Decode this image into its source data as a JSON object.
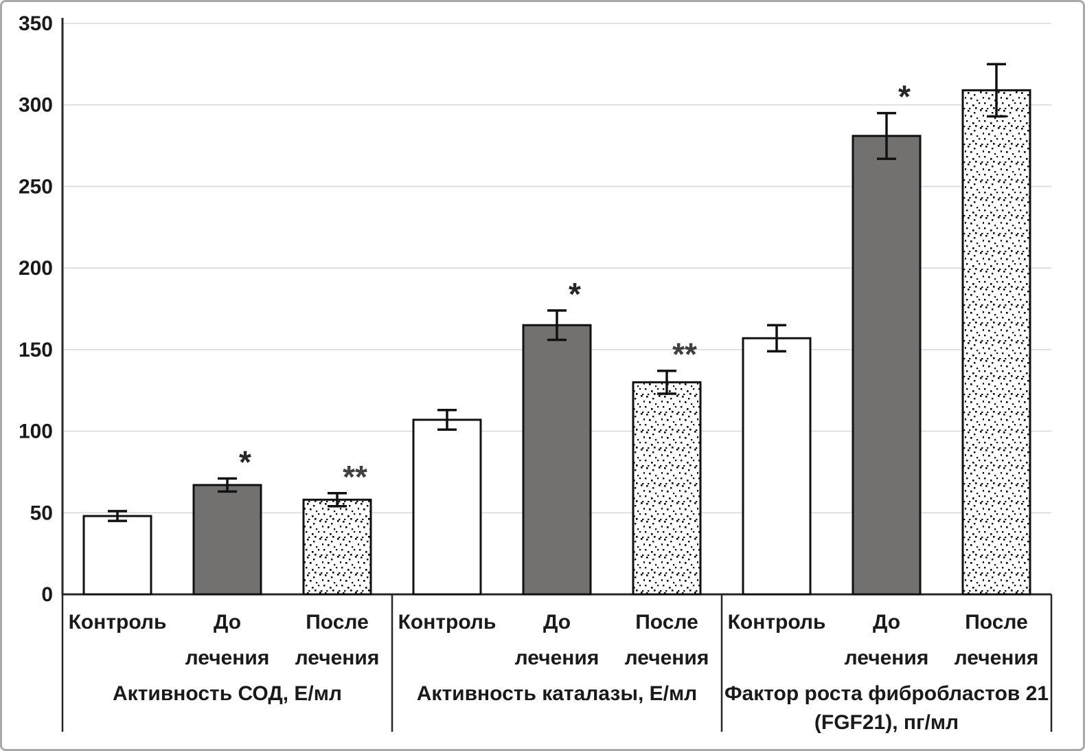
{
  "figure": {
    "background": "#ffffff",
    "border_color": "#a9a9a9"
  },
  "chart_data": {
    "type": "bar",
    "title": "",
    "xlabel": "",
    "ylabel": "",
    "ylim": [
      0,
      350
    ],
    "ytick_step": 50,
    "ytick_labels": [
      "0",
      "50",
      "100",
      "150",
      "200",
      "250",
      "300",
      "350"
    ],
    "grid": true,
    "legend_position": "none",
    "error_bars": true,
    "groups": [
      {
        "label_lines": [
          "Активность СОД, Е/мл"
        ],
        "bars": [
          {
            "category_lines": [
              "Контроль"
            ],
            "value": 48,
            "error": 3,
            "fill": "white",
            "annotation": ""
          },
          {
            "category_lines": [
              "До",
              "лечения"
            ],
            "value": 67,
            "error": 4,
            "fill": "gray",
            "annotation": "*"
          },
          {
            "category_lines": [
              "После",
              "лечения"
            ],
            "value": 58,
            "error": 4,
            "fill": "dotted",
            "annotation": "**"
          }
        ]
      },
      {
        "label_lines": [
          "Активность каталазы, Е/мл"
        ],
        "bars": [
          {
            "category_lines": [
              "Контроль"
            ],
            "value": 107,
            "error": 6,
            "fill": "white",
            "annotation": ""
          },
          {
            "category_lines": [
              "До",
              "лечения"
            ],
            "value": 165,
            "error": 9,
            "fill": "gray",
            "annotation": "*"
          },
          {
            "category_lines": [
              "После",
              "лечения"
            ],
            "value": 130,
            "error": 7,
            "fill": "dotted",
            "annotation": "**"
          }
        ]
      },
      {
        "label_lines": [
          "Фактор роста фибробластов 21",
          "(FGF21), пг/мл"
        ],
        "bars": [
          {
            "category_lines": [
              "Контроль"
            ],
            "value": 157,
            "error": 8,
            "fill": "white",
            "annotation": ""
          },
          {
            "category_lines": [
              "До",
              "лечения"
            ],
            "value": 281,
            "error": 14,
            "fill": "gray",
            "annotation": "*"
          },
          {
            "category_lines": [
              "После",
              "лечения"
            ],
            "value": 309,
            "error": 16,
            "fill": "dotted",
            "annotation": ""
          }
        ]
      }
    ],
    "colors": {
      "bar_white_fill": "#ffffff",
      "bar_gray_fill": "#737070",
      "bar_stroke": "#111111",
      "axis": "#262626",
      "gridline": "#d9d9d9",
      "text": "#1a1a1a",
      "annotation_single": "#262626",
      "annotation_double": "#404040",
      "error_bar": "#111111"
    }
  }
}
